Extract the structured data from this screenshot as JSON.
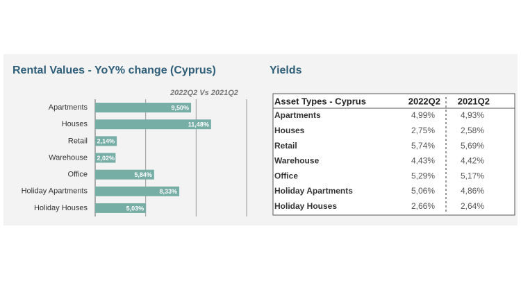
{
  "chart_data": {
    "type": "bar",
    "orientation": "horizontal",
    "title": "Rental Values - YoY% change (Cyprus)",
    "subtitle": "2022Q2 Vs 2021Q2",
    "categories": [
      "Apartments",
      "Houses",
      "Retail",
      "Warehouse",
      "Office",
      "Holiday Apartments",
      "Holiday Houses"
    ],
    "values": [
      9.5,
      11.48,
      2.14,
      2.02,
      5.84,
      8.33,
      5.03
    ],
    "value_labels": [
      "9,50%",
      "11,48%",
      "2,14%",
      "2,02%",
      "5,84%",
      "8,33%",
      "5,03%"
    ],
    "color": "#76aea6",
    "xlim": [
      0,
      15
    ],
    "xticks": [
      0,
      5,
      10,
      15
    ],
    "grid": true
  },
  "yields": {
    "title": "Yields",
    "table": {
      "header": [
        "Asset Types - Cyprus",
        "2022Q2",
        "2021Q2"
      ],
      "rows": [
        [
          "Apartments",
          "4,99%",
          "4,93%"
        ],
        [
          "Houses",
          "2,75%",
          "2,58%"
        ],
        [
          "Retail",
          "5,74%",
          "5,69%"
        ],
        [
          "Warehouse",
          "4,43%",
          "4,42%"
        ],
        [
          "Office",
          "5,29%",
          "5,17%"
        ],
        [
          "Holiday Apartments",
          "5,06%",
          "4,86%"
        ],
        [
          "Holiday Houses",
          "2,66%",
          "2,64%"
        ]
      ]
    }
  }
}
